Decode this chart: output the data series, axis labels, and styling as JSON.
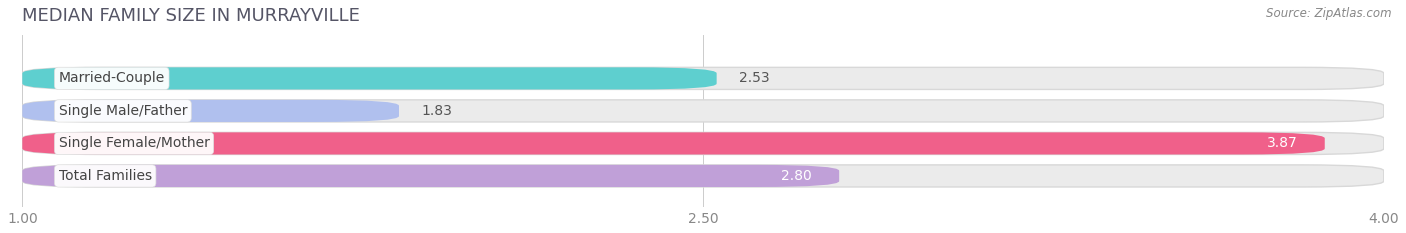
{
  "title": "MEDIAN FAMILY SIZE IN MURRAYVILLE",
  "source": "Source: ZipAtlas.com",
  "categories": [
    "Married-Couple",
    "Single Male/Father",
    "Single Female/Mother",
    "Total Families"
  ],
  "values": [
    2.53,
    1.83,
    3.87,
    2.8
  ],
  "bar_colors": [
    "#5ecfcf",
    "#b0c0ee",
    "#f0608a",
    "#c0a0d8"
  ],
  "bar_bg_color": "#ebebeb",
  "value_text_colors": [
    "#555555",
    "#555555",
    "#ffffff",
    "#ffffff"
  ],
  "xlim": [
    1.0,
    4.0
  ],
  "xticks": [
    1.0,
    2.5,
    4.0
  ],
  "xticklabels": [
    "1.00",
    "2.50",
    "4.00"
  ],
  "label_fontsize": 10,
  "value_fontsize": 10,
  "title_fontsize": 13,
  "source_fontsize": 8.5,
  "background_color": "#ffffff",
  "bar_height": 0.68,
  "bar_gap": 0.18
}
